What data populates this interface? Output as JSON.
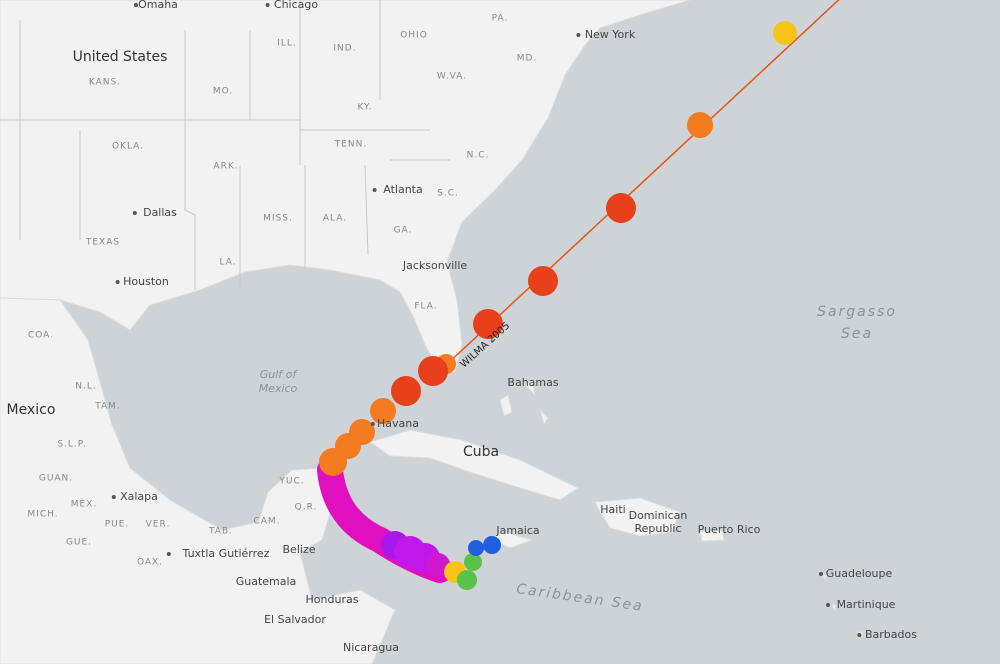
{
  "labels": [
    "Omaha",
    "Chicago",
    "PA.",
    "New York",
    "United States",
    "KANS.",
    "ILL.",
    "IND.",
    "OHIO",
    "MD.",
    "MO.",
    "W.VA.",
    "KY.",
    "OKLA.",
    "ARK.",
    "TENN.",
    "N.C.",
    "Atlanta",
    "S.C.",
    "Dallas",
    "TEXAS",
    "MISS.",
    "ALA.",
    "GA.",
    "Jacksonville",
    "LA.",
    "Houston",
    "FLA.",
    "COA.",
    "Bahamas",
    "N.L.",
    "TAM.",
    "Mexico",
    "Havana",
    "S.L.P.",
    "Cuba",
    "GUAN.",
    "YUC.",
    "MÉX.",
    "Xalapa",
    "Q.R.",
    "MICH.",
    "Haiti",
    "Dominican",
    "Republic",
    "Puerto Rico",
    "PUE.",
    "VER.",
    "CAM.",
    "TAB.",
    "Jamaica",
    "GUE.",
    "Belize",
    "OAX.",
    "Tuxtla Gutiérrez",
    "Guatemala",
    "Guadeloupe",
    "Martinique",
    "Honduras",
    "El Salvador",
    "Barbados",
    "Nicaragua"
  ],
  "seas": [
    "Sargasso",
    "Sea",
    "Gulf of",
    "Mexico",
    "Caribbean Sea"
  ],
  "track_label": "WILMA 2005"
}
